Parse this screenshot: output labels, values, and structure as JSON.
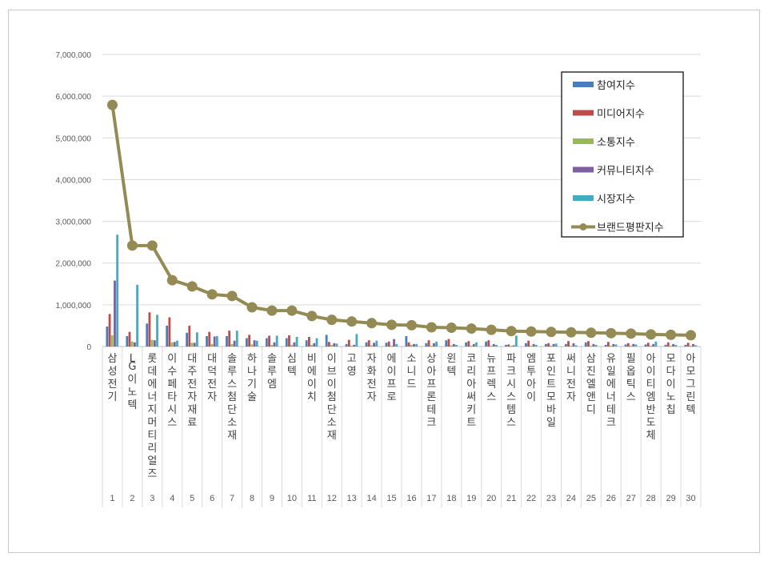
{
  "chart_data": {
    "type": "bar",
    "title": "",
    "xlabel": "",
    "ylabel": "",
    "ylim": [
      0,
      7000000
    ],
    "y_ticks": [
      "0",
      "1,000,000",
      "2,000,000",
      "3,000,000",
      "4,000,000",
      "5,000,000",
      "6,000,000",
      "7,000,000"
    ],
    "grid": true,
    "legend_position": "top-right",
    "ranks": [
      "1",
      "2",
      "3",
      "4",
      "5",
      "6",
      "7",
      "8",
      "9",
      "10",
      "11",
      "12",
      "13",
      "14",
      "15",
      "16",
      "17",
      "18",
      "19",
      "20",
      "21",
      "22",
      "23",
      "24",
      "25",
      "26",
      "27",
      "28",
      "29",
      "30"
    ],
    "categories": [
      "삼성전기",
      "LG이노텍",
      "롯데에너지머티리얼즈",
      "이수페타시스",
      "대주전자재료",
      "대덕전자",
      "솔루스첨단소재",
      "하나기술",
      "솔루엠",
      "심텍",
      "비에이치",
      "이브이첨단소재",
      "고영",
      "자화전자",
      "에이프로",
      "소니드",
      "상아프론테크",
      "윈텍",
      "코리아써키트",
      "뉴프렉스",
      "파크시스템스",
      "엠투아이",
      "포인트모바일",
      "써니전자",
      "삼진엘앤디",
      "유일에너테크",
      "필옵틱스",
      "아이티엠반도체",
      "모다이노칩",
      "아모그린텍"
    ],
    "series": [
      {
        "name": "참여지수",
        "kind": "bar",
        "color": "#4a7ebb",
        "values": [
          480000,
          250000,
          550000,
          500000,
          330000,
          250000,
          250000,
          200000,
          200000,
          200000,
          150000,
          280000,
          60000,
          100000,
          90000,
          250000,
          80000,
          150000,
          100000,
          120000,
          40000,
          80000,
          60000,
          60000,
          100000,
          40000,
          50000,
          50000,
          40000,
          40000
        ]
      },
      {
        "name": "미디어지수",
        "kind": "bar",
        "color": "#be4b48",
        "values": [
          780000,
          350000,
          820000,
          700000,
          500000,
          350000,
          380000,
          280000,
          260000,
          270000,
          230000,
          110000,
          160000,
          150000,
          120000,
          100000,
          150000,
          180000,
          130000,
          150000,
          50000,
          140000,
          80000,
          130000,
          130000,
          110000,
          80000,
          90000,
          100000,
          90000
        ]
      },
      {
        "name": "소통지수",
        "kind": "bar",
        "color": "#98b954",
        "values": [
          270000,
          120000,
          160000,
          100000,
          90000,
          60000,
          60000,
          50000,
          40000,
          40000,
          40000,
          40000,
          20000,
          30000,
          20000,
          40000,
          20000,
          30000,
          20000,
          20000,
          20000,
          20000,
          20000,
          20000,
          20000,
          20000,
          20000,
          20000,
          20000,
          20000
        ]
      },
      {
        "name": "커뮤니티지수",
        "kind": "bar",
        "color": "#7d60a0",
        "values": [
          1580000,
          100000,
          150000,
          110000,
          90000,
          240000,
          140000,
          150000,
          100000,
          100000,
          80000,
          80000,
          40000,
          90000,
          180000,
          60000,
          80000,
          60000,
          60000,
          60000,
          30000,
          60000,
          60000,
          80000,
          60000,
          60000,
          60000,
          60000,
          60000,
          60000
        ]
      },
      {
        "name": "시장지수",
        "kind": "bar",
        "color": "#46aac5",
        "values": [
          2680000,
          1480000,
          760000,
          140000,
          340000,
          250000,
          380000,
          140000,
          260000,
          230000,
          200000,
          70000,
          300000,
          140000,
          60000,
          60000,
          120000,
          40000,
          100000,
          40000,
          260000,
          40000,
          70000,
          30000,
          40000,
          50000,
          50000,
          120000,
          40000,
          30000
        ]
      },
      {
        "name": "브랜드평판지수",
        "kind": "line",
        "color": "#948a54",
        "values": [
          5790000,
          2420000,
          2420000,
          1590000,
          1440000,
          1250000,
          1210000,
          940000,
          860000,
          860000,
          730000,
          640000,
          600000,
          560000,
          520000,
          510000,
          460000,
          450000,
          430000,
          400000,
          370000,
          360000,
          350000,
          340000,
          330000,
          320000,
          310000,
          290000,
          280000,
          270000
        ]
      }
    ]
  }
}
